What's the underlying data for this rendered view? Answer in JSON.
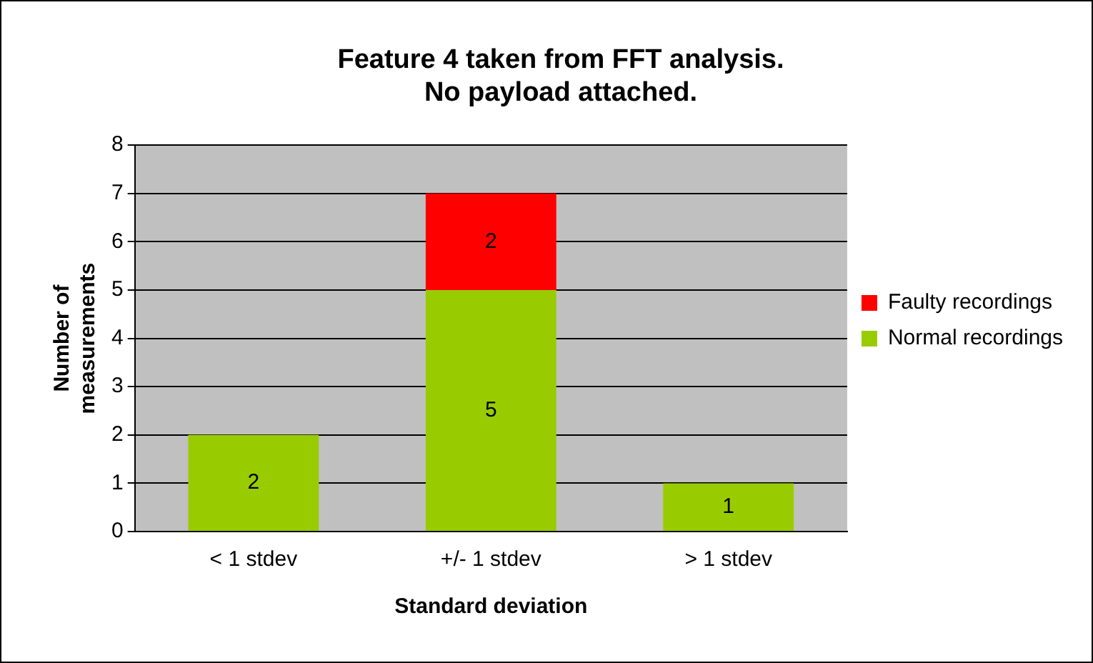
{
  "chart_data": {
    "type": "bar",
    "title": "Feature 4 taken from FFT analysis.\nNo payload attached.",
    "xlabel": "Standard deviation",
    "ylabel": "Number of measurements",
    "categories": [
      "< 1 stdev",
      "+/- 1 stdev",
      "> 1 stdev"
    ],
    "stacked": true,
    "series": [
      {
        "name": "Normal recordings",
        "color": "#99cc00",
        "values": [
          2,
          5,
          1
        ]
      },
      {
        "name": "Faulty recordings",
        "color": "#ff0000",
        "values": [
          null,
          2,
          null
        ]
      }
    ],
    "ylim": [
      0,
      8
    ],
    "yticks": [
      0,
      1,
      2,
      3,
      4,
      5,
      6,
      7,
      8
    ],
    "grid": "y",
    "legend": "right",
    "data_labels": true
  }
}
